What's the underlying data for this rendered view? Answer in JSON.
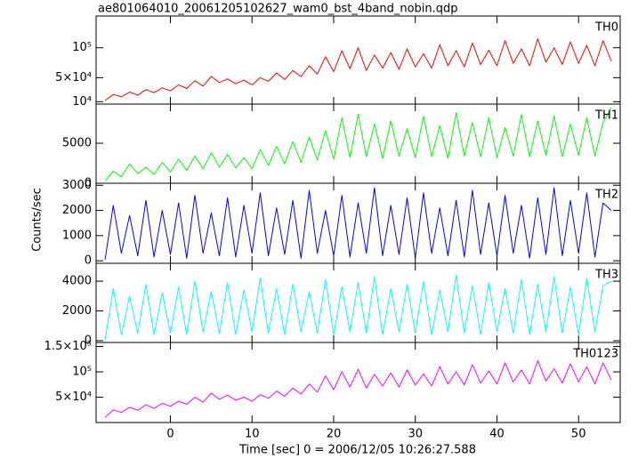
{
  "chart_data": {
    "type": "line",
    "title": "ae801064010_20061205102627_wam0_bst_4band_nobin.qdp",
    "xlabel": "Time [sec] 0 = 2006/12/05 10:26:27.588",
    "ylabel": "Counts/sec",
    "xlim": [
      -9.1,
      55.1
    ],
    "xticks": [
      0,
      10,
      20,
      30,
      40,
      50
    ],
    "x": [
      -8,
      -7,
      -6,
      -5,
      -4,
      -3,
      -2,
      -1,
      0,
      1,
      2,
      3,
      4,
      5,
      6,
      7,
      8,
      9,
      10,
      11,
      12,
      13,
      14,
      15,
      16,
      17,
      18,
      19,
      20,
      21,
      22,
      23,
      24,
      25,
      26,
      27,
      28,
      29,
      30,
      31,
      32,
      33,
      34,
      35,
      36,
      37,
      38,
      39,
      40,
      41,
      42,
      43,
      44,
      45,
      46,
      47,
      48,
      49,
      50,
      51,
      52,
      53,
      54
    ],
    "series": [
      {
        "name": "TH0",
        "color": "#ff0000",
        "ylim": [
          6000,
          153000
        ],
        "yticks": [
          {
            "value": 10000,
            "label": "10⁴"
          },
          {
            "value": 50000,
            "label": "5×10⁴"
          },
          {
            "value": 100000,
            "label": "10⁵"
          }
        ],
        "values": [
          12000,
          22000,
          18000,
          26000,
          21000,
          30000,
          25000,
          33000,
          28000,
          38000,
          32000,
          45000,
          36000,
          52000,
          42000,
          48000,
          40000,
          46000,
          38000,
          50000,
          44000,
          58000,
          47000,
          62000,
          52000,
          70000,
          56000,
          85000,
          60000,
          95000,
          65000,
          100000,
          62000,
          88000,
          66000,
          92000,
          64000,
          98000,
          68000,
          90000,
          66000,
          105000,
          70000,
          95000,
          68000,
          108000,
          72000,
          96000,
          70000,
          112000,
          74000,
          98000,
          70000,
          115000,
          76000,
          100000,
          72000,
          110000,
          74000,
          104000,
          70000,
          112000,
          78000
        ]
      },
      {
        "name": "TH1",
        "color": "#00ff00",
        "ylim": [
          0,
          9900
        ],
        "yticks": [
          0,
          5000
        ],
        "values": [
          300,
          1500,
          800,
          2400,
          1200,
          2000,
          1100,
          2600,
          1400,
          3000,
          1600,
          3400,
          1800,
          3800,
          2000,
          3600,
          1900,
          3200,
          1800,
          4200,
          2200,
          4600,
          2400,
          5200,
          2600,
          5800,
          2900,
          6600,
          3000,
          8200,
          3200,
          8600,
          3300,
          7400,
          3100,
          7800,
          3400,
          6800,
          3200,
          8400,
          3300,
          7200,
          3100,
          8800,
          3400,
          7600,
          3300,
          8200,
          3200,
          7000,
          3400,
          8600,
          3300,
          7800,
          3500,
          8400,
          3300,
          7400,
          3500,
          8200,
          3400,
          7600,
          9400
        ]
      },
      {
        "name": "TH2",
        "color": "#0000ff",
        "ylim": [
          -100,
          3080
        ],
        "yticks": [
          0,
          1000,
          2000,
          3000
        ],
        "values": [
          50,
          2200,
          300,
          1800,
          200,
          2400,
          150,
          2000,
          250,
          2300,
          100,
          2600,
          300,
          1900,
          200,
          2500,
          150,
          2200,
          300,
          2700,
          200,
          2100,
          250,
          2400,
          100,
          2800,
          300,
          2000,
          200,
          2600,
          150,
          2300,
          300,
          2900,
          200,
          2200,
          250,
          2500,
          100,
          2700,
          300,
          2100,
          200,
          2400,
          150,
          2800,
          250,
          2300,
          200,
          2600,
          300,
          2200,
          100,
          2500,
          250,
          2900,
          200,
          2400,
          300,
          2700,
          150,
          2300,
          2000
        ]
      },
      {
        "name": "TH3",
        "color": "#00ffff",
        "ylim": [
          -120,
          5200
        ],
        "yticks": [
          0,
          2000,
          4000
        ],
        "values": [
          50,
          3500,
          400,
          3000,
          500,
          3800,
          400,
          3200,
          500,
          3600,
          400,
          4000,
          600,
          3300,
          500,
          3900,
          400,
          3400,
          600,
          4200,
          500,
          3500,
          400,
          3800,
          600,
          3300,
          500,
          4100,
          400,
          3600,
          600,
          3900,
          500,
          4300,
          400,
          3500,
          600,
          3800,
          500,
          4000,
          400,
          3400,
          600,
          4400,
          500,
          3700,
          400,
          3900,
          600,
          3500,
          500,
          4100,
          400,
          3800,
          600,
          4300,
          500,
          3600,
          400,
          4200,
          600,
          3700,
          4000
        ]
      },
      {
        "name": "TH0123",
        "color": "#ff00ff",
        "ylim": [
          0,
          158000
        ],
        "yticks": [
          {
            "value": 50000,
            "label": "5×10⁴"
          },
          {
            "value": 100000,
            "label": "10⁵"
          },
          {
            "value": 150000,
            "label": "1.5×10⁵"
          }
        ],
        "values": [
          10000,
          25000,
          20000,
          30000,
          24000,
          35000,
          28000,
          38000,
          32000,
          42000,
          36000,
          50000,
          40000,
          58000,
          46000,
          54000,
          44000,
          50000,
          42000,
          55000,
          48000,
          62000,
          52000,
          68000,
          56000,
          76000,
          60000,
          92000,
          65000,
          100000,
          70000,
          105000,
          68000,
          95000,
          72000,
          98000,
          70000,
          104000,
          74000,
          96000,
          72000,
          110000,
          76000,
          100000,
          74000,
          114000,
          78000,
          102000,
          76000,
          118000,
          80000,
          104000,
          76000,
          122000,
          82000,
          106000,
          78000,
          116000,
          80000,
          110000,
          76000,
          118000,
          84000
        ]
      }
    ]
  }
}
